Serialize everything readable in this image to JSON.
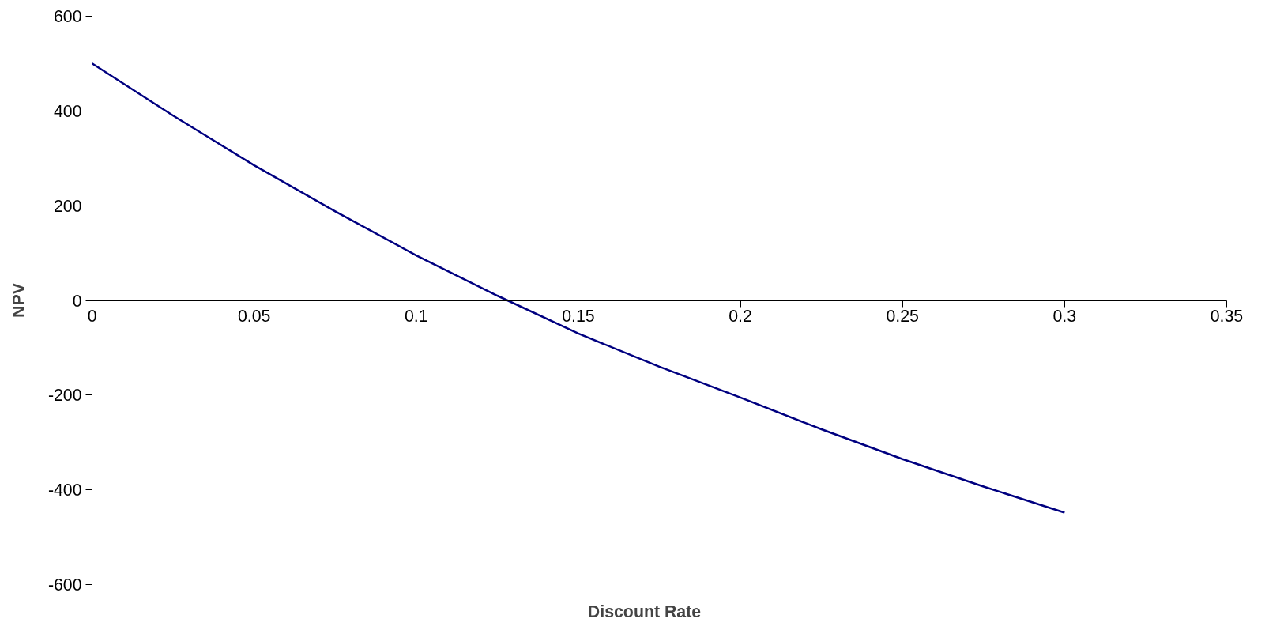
{
  "chart_data": {
    "type": "line",
    "xlabel": "Discount Rate",
    "ylabel": "NPV",
    "x": [
      0,
      0.025,
      0.05,
      0.075,
      0.1,
      0.125,
      0.15,
      0.175,
      0.2,
      0.225,
      0.25,
      0.275,
      0.3
    ],
    "series": [
      {
        "color": "#000080",
        "values": [
          500,
          390,
          285,
          188,
          95,
          10,
          -70,
          -140,
          -205,
          -272,
          -335,
          -393,
          -448
        ]
      }
    ],
    "xlim": [
      0,
      0.35
    ],
    "xticks": [
      0,
      0.05,
      0.1,
      0.15,
      0.2,
      0.25,
      0.3,
      0.35
    ],
    "ylim": [
      -600,
      600
    ],
    "yticks": [
      -600,
      -400,
      -200,
      0,
      200,
      400,
      600
    ],
    "grid": false,
    "marker": "none",
    "line_style": "solid"
  }
}
